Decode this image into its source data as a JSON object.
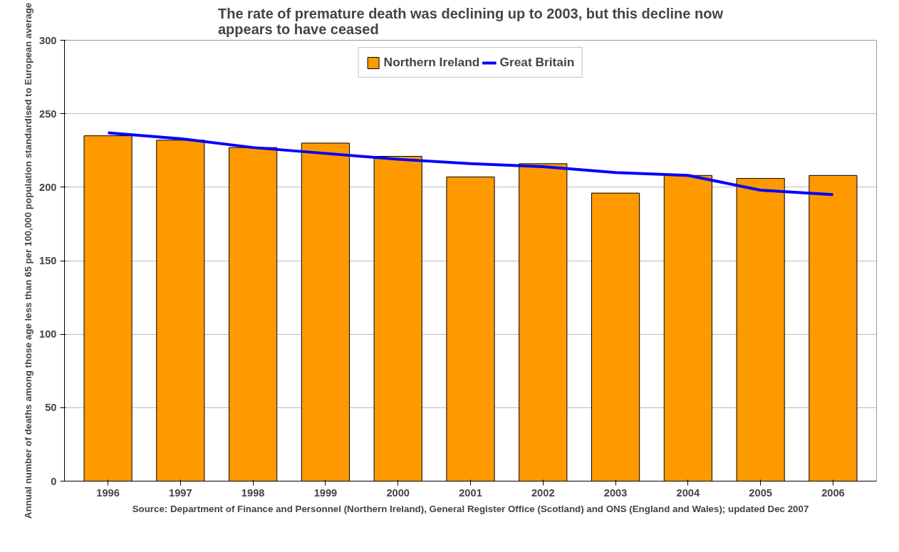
{
  "chart_data": {
    "type": "bar",
    "title": "The rate of premature death was declining up to 2003, but this decline now appears to have ceased",
    "ylabel": "Annual number of deaths among those age less than 65 per 100,000 population standardised to European average",
    "categories": [
      "1996",
      "1997",
      "1998",
      "1999",
      "2000",
      "2001",
      "2002",
      "2003",
      "2004",
      "2005",
      "2006"
    ],
    "series": [
      {
        "name": "Northern Ireland",
        "color": "#ff9900",
        "values": [
          235,
          232,
          227,
          230,
          221,
          207,
          216,
          196,
          208,
          206,
          208
        ]
      },
      {
        "name": "Great Britain",
        "type": "line",
        "color": "#0000ff",
        "values": [
          237,
          233,
          227,
          223,
          219,
          216,
          214,
          210,
          208,
          198,
          195
        ]
      }
    ],
    "ylim": [
      0,
      300
    ],
    "yticks": [
      0,
      50,
      100,
      150,
      200,
      250,
      300
    ],
    "grid": "y",
    "legend": "top",
    "annotations": [
      "Source: Department of Finance and Personnel (Northern Ireland), General Register Office (Scotland) and ONS (England and Wales); updated Dec 2007"
    ]
  }
}
